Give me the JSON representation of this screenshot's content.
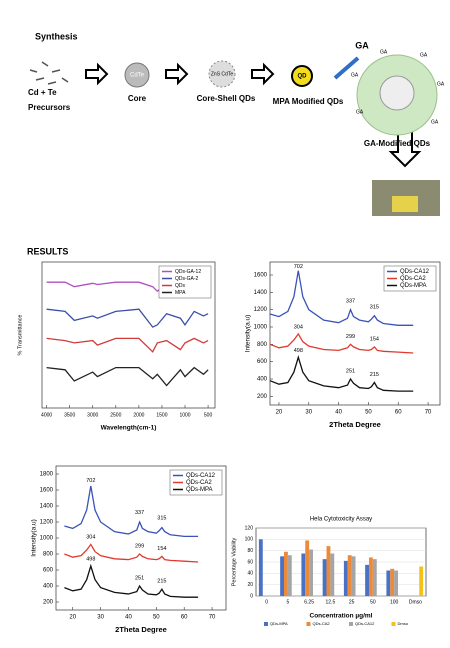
{
  "diagram": {
    "title": "Synthesis",
    "precursor_lines": [
      "Cd + Te",
      "Precursors"
    ],
    "core_inner": "CdTe",
    "core": "Core",
    "shell_inner": "ZnS CdTe",
    "core_shell": "Core-Shell QDs",
    "mpa_inner": "QD",
    "mpa": "MPA Modified QDs",
    "ga": "GA",
    "ga_labels": [
      "GA",
      "GA",
      "GA",
      "GA",
      "GA",
      "GA"
    ],
    "ga_modified": "GA-Modified QDs"
  },
  "heading": "RESULTS",
  "chart_data": [
    {
      "type": "line",
      "xlabel": "Wavelength(cm-1)",
      "ylabel": "% Transmittance",
      "x": [
        4000,
        3600,
        3400,
        3000,
        2900,
        2500,
        2000,
        1700,
        1600,
        1400,
        1100,
        1000,
        800,
        600,
        500
      ],
      "xlim": [
        4100,
        350
      ],
      "xticks": [
        4000,
        3500,
        3000,
        2500,
        2000,
        1500,
        1000,
        500
      ],
      "ylim": [
        0,
        130
      ],
      "legend": "upper right",
      "series": [
        {
          "name": "QDs-GA-12",
          "color": "#b04fc0",
          "values": [
            112,
            112,
            108,
            111,
            110,
            112,
            112,
            108,
            104,
            110,
            106,
            100,
            111,
            109,
            110
          ]
        },
        {
          "name": "QDs-GA-2",
          "color": "#3a4fa8",
          "values": [
            88,
            86,
            78,
            82,
            80,
            86,
            88,
            72,
            74,
            84,
            80,
            74,
            86,
            82,
            84
          ]
        },
        {
          "name": "QDs",
          "color": "#d23a3a",
          "values": [
            62,
            60,
            58,
            60,
            56,
            62,
            62,
            50,
            58,
            60,
            52,
            58,
            62,
            58,
            60
          ]
        },
        {
          "name": "MPA",
          "color": "#222222",
          "values": [
            36,
            34,
            24,
            32,
            28,
            36,
            36,
            26,
            30,
            20,
            34,
            28,
            36,
            30,
            34
          ]
        }
      ]
    },
    {
      "type": "line",
      "xlabel": "2Theta Degree",
      "ylabel": "Intensity(a.u)",
      "x": [
        17,
        20,
        23,
        25,
        26.5,
        28,
        30,
        35,
        40,
        43,
        44,
        45,
        47,
        50,
        51,
        52,
        53,
        55,
        60,
        65
      ],
      "xlim": [
        17,
        74
      ],
      "xticks": [
        20,
        30,
        40,
        50,
        60,
        70
      ],
      "ylim": [
        100,
        1750
      ],
      "yticks": [
        200,
        400,
        600,
        800,
        1000,
        1200,
        1400,
        1600
      ],
      "legend": "upper right",
      "series": [
        {
          "name": "QDs-CA12",
          "color": "#3953b8",
          "values": [
            1150,
            1120,
            1180,
            1350,
            1650,
            1350,
            1200,
            1080,
            1050,
            1100,
            1200,
            1120,
            1080,
            1060,
            1090,
            1130,
            1080,
            1040,
            1020,
            1020
          ]
        },
        {
          "name": "QDs-CA2",
          "color": "#e03a2e",
          "values": [
            800,
            760,
            780,
            850,
            920,
            830,
            780,
            740,
            730,
            760,
            800,
            770,
            740,
            730,
            740,
            770,
            730,
            720,
            710,
            700
          ]
        },
        {
          "name": "QDs-MPA",
          "color": "#111111",
          "values": [
            380,
            340,
            360,
            480,
            650,
            480,
            380,
            320,
            300,
            330,
            400,
            350,
            300,
            290,
            310,
            360,
            300,
            270,
            260,
            260
          ]
        }
      ],
      "annotations": [
        {
          "text": "702",
          "x": 26.5,
          "y": 1700
        },
        {
          "text": "337",
          "x": 44,
          "y": 1300
        },
        {
          "text": "315",
          "x": 52,
          "y": 1230
        },
        {
          "text": "304",
          "x": 26.5,
          "y": 1000
        },
        {
          "text": "299",
          "x": 44,
          "y": 890
        },
        {
          "text": "154",
          "x": 52,
          "y": 860
        },
        {
          "text": "498",
          "x": 26.5,
          "y": 730
        },
        {
          "text": "251",
          "x": 44,
          "y": 490
        },
        {
          "text": "215",
          "x": 52,
          "y": 450
        }
      ]
    },
    {
      "type": "line",
      "xlabel": "2Theta Degree",
      "ylabel": "Intensity(a.u)",
      "x": [
        17,
        20,
        23,
        25,
        26.5,
        28,
        30,
        35,
        40,
        43,
        44,
        45,
        47,
        50,
        51,
        52,
        53,
        55,
        60,
        65
      ],
      "xlim": [
        14,
        75
      ],
      "xticks": [
        20,
        30,
        40,
        50,
        60,
        70
      ],
      "ylim": [
        100,
        1900
      ],
      "yticks": [
        200,
        400,
        600,
        800,
        1000,
        1200,
        1400,
        1600,
        1800
      ],
      "legend": "upper right",
      "series": [
        {
          "name": "QDs-CA12",
          "color": "#3953b8",
          "values": [
            1150,
            1120,
            1180,
            1350,
            1650,
            1350,
            1200,
            1080,
            1050,
            1100,
            1200,
            1120,
            1080,
            1060,
            1090,
            1130,
            1080,
            1040,
            1020,
            1020
          ]
        },
        {
          "name": "QDs-CA2",
          "color": "#e03a2e",
          "values": [
            800,
            760,
            780,
            850,
            920,
            830,
            780,
            740,
            730,
            760,
            800,
            770,
            740,
            730,
            740,
            770,
            730,
            720,
            710,
            700
          ]
        },
        {
          "name": "QDs-MPA",
          "color": "#111111",
          "values": [
            380,
            340,
            360,
            480,
            650,
            480,
            380,
            320,
            300,
            330,
            400,
            350,
            300,
            290,
            310,
            360,
            300,
            270,
            260,
            260
          ]
        }
      ],
      "annotations": [
        {
          "text": "702",
          "x": 26.5,
          "y": 1720
        },
        {
          "text": "337",
          "x": 44,
          "y": 1320
        },
        {
          "text": "315",
          "x": 52,
          "y": 1250
        },
        {
          "text": "304",
          "x": 26.5,
          "y": 1010
        },
        {
          "text": "299",
          "x": 44,
          "y": 900
        },
        {
          "text": "154",
          "x": 52,
          "y": 870
        },
        {
          "text": "498",
          "x": 26.5,
          "y": 740
        },
        {
          "text": "251",
          "x": 44,
          "y": 500
        },
        {
          "text": "215",
          "x": 52,
          "y": 460
        }
      ]
    },
    {
      "type": "bar",
      "title": "Hela Cytotoxicity Assay",
      "xlabel": "Concentration µg/ml",
      "ylabel": "Percentage Viability",
      "categories": [
        "0",
        "5",
        "6.25",
        "12.5",
        "25",
        "50",
        "100",
        "Dmso"
      ],
      "ylim": [
        0,
        120
      ],
      "yticks": [
        0,
        20,
        40,
        60,
        80,
        100,
        120
      ],
      "grid": true,
      "legend": "bottom",
      "series": [
        {
          "name": "QDs-MPA",
          "color": "#4a72c4",
          "values": [
            100,
            70,
            75,
            65,
            62,
            55,
            45,
            null
          ]
        },
        {
          "name": "QDs-CA2",
          "color": "#ed8a3a",
          "values": [
            null,
            78,
            98,
            88,
            72,
            68,
            48,
            null
          ]
        },
        {
          "name": "QDs-CA12",
          "color": "#a5a5a5",
          "values": [
            null,
            72,
            82,
            75,
            70,
            65,
            45,
            null
          ]
        },
        {
          "name": "Dmso",
          "color": "#f2c21b",
          "values": [
            null,
            null,
            null,
            null,
            null,
            null,
            null,
            52
          ]
        }
      ]
    }
  ]
}
